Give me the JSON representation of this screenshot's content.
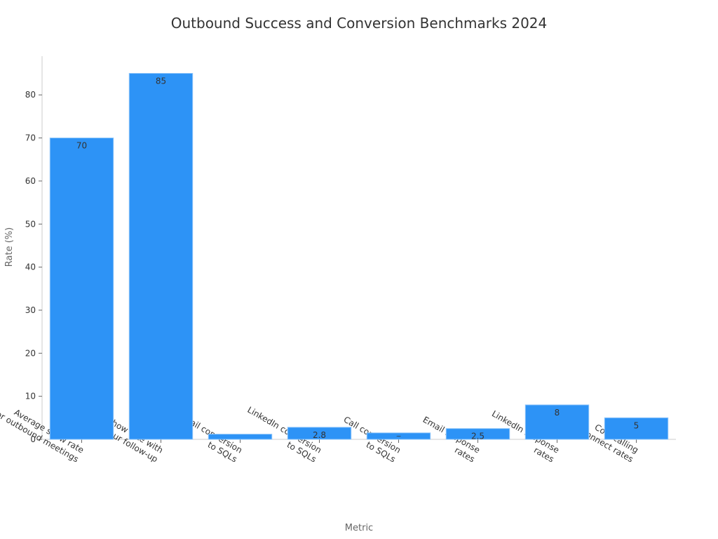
{
  "chart_data": {
    "type": "bar",
    "title": "Outbound Success and Conversion Benchmarks 2024",
    "xlabel": "Metric",
    "ylabel": "Rate (%)",
    "ylim": [
      0,
      89
    ],
    "yticks": [
      0,
      10,
      20,
      30,
      40,
      50,
      60,
      70,
      80
    ],
    "grid": false,
    "categories": [
      [
        "Average show rate",
        "for outbound meetings"
      ],
      [
        "Show rate with",
        "24-hour follow-up"
      ],
      [
        "Email conversion",
        "to SQLs"
      ],
      [
        "LinkedIn conversion",
        "to SQLs"
      ],
      [
        "Call conversion",
        "to SQLs"
      ],
      [
        "Email response",
        "rates"
      ],
      [
        "LinkedIn response",
        "rates"
      ],
      [
        "Cold calling",
        "connect rates"
      ]
    ],
    "values": [
      70,
      85,
      1.2,
      2.8,
      1.5,
      2.5,
      8,
      5
    ],
    "value_labels": [
      "70",
      "85",
      "",
      "2.8",
      "~",
      "2.5",
      "8",
      "5"
    ],
    "bar_color": "#2d93f6",
    "bar_edge_color": "#8cc4fa"
  }
}
